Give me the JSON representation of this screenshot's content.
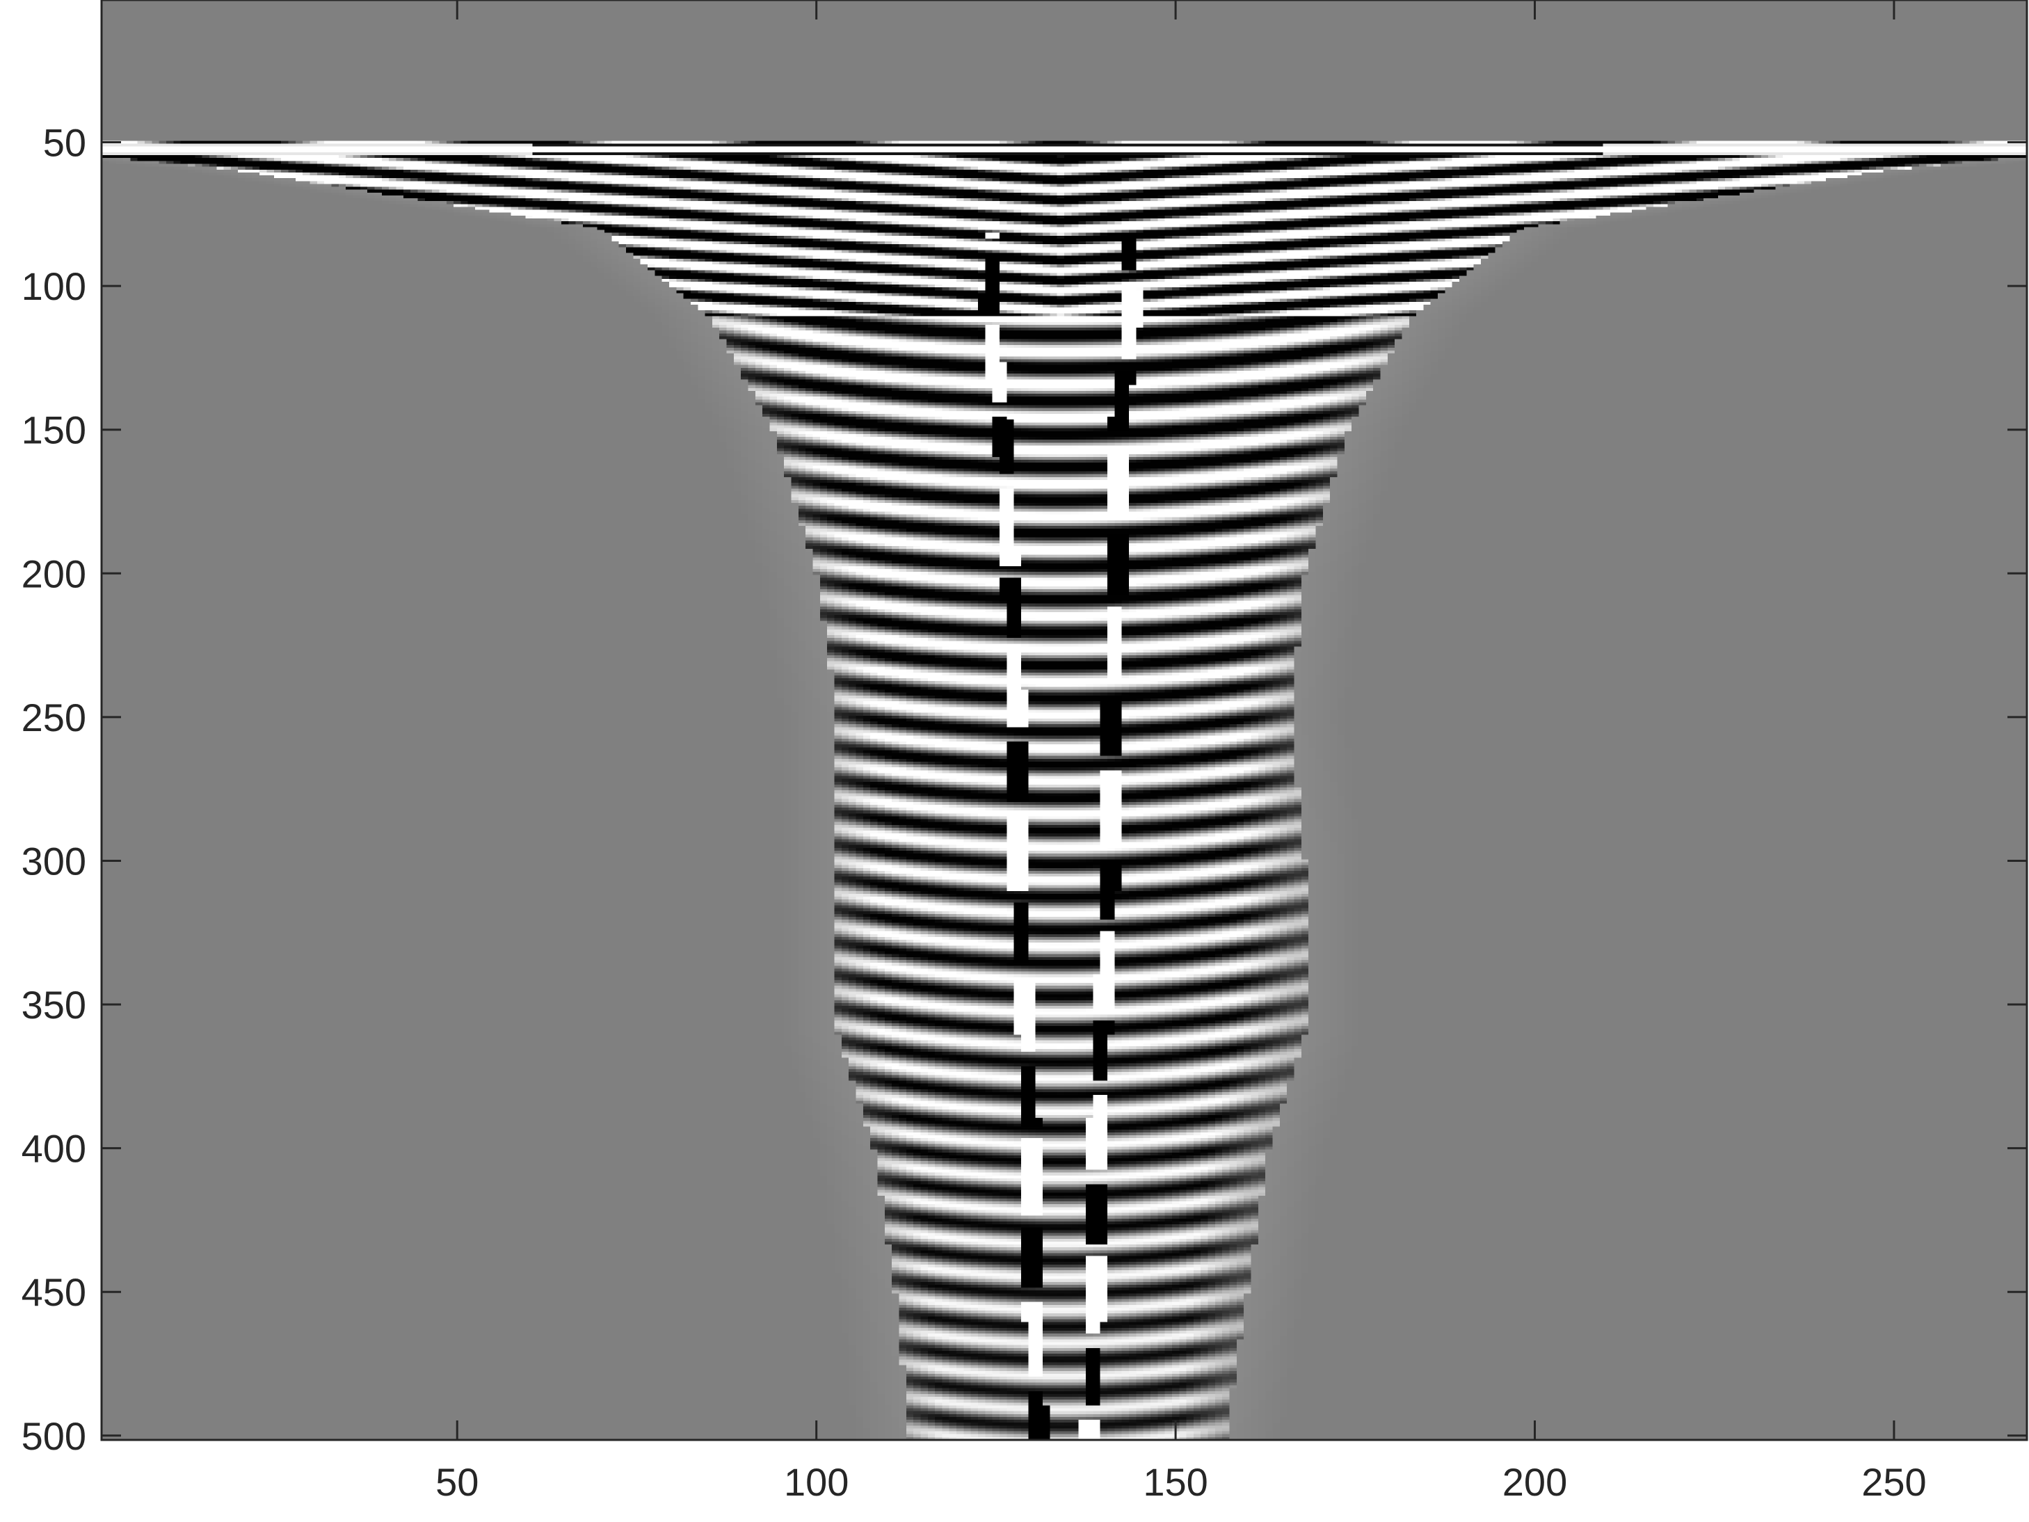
{
  "chart_data": {
    "type": "heatmap",
    "title": "",
    "xlabel": "",
    "ylabel": "",
    "colormap": "gray",
    "colors": {
      "background": "#808080",
      "low": "#000000",
      "high": "#ffffff",
      "axis": "#262626"
    },
    "xlim": [
      1,
      268
    ],
    "ylim": [
      1,
      501
    ],
    "y_reversed": true,
    "grid": false,
    "x_ticks": [
      50,
      100,
      150,
      200,
      250
    ],
    "y_ticks": [
      50,
      100,
      150,
      200,
      250,
      300,
      350,
      400,
      450,
      500
    ],
    "wavefield": {
      "source_row": 51,
      "center_col": 134,
      "fan_edges": [
        {
          "row": 55,
          "left": 1,
          "right": 268
        },
        {
          "row": 60,
          "left": 20,
          "right": 248
        },
        {
          "row": 80,
          "left": 70,
          "right": 198
        },
        {
          "row": 110,
          "left": 85,
          "right": 183
        },
        {
          "row": 150,
          "left": 94,
          "right": 174
        },
        {
          "row": 200,
          "left": 100,
          "right": 168
        },
        {
          "row": 250,
          "left": 103,
          "right": 166
        },
        {
          "row": 300,
          "left": 103,
          "right": 168
        },
        {
          "row": 360,
          "left": 103,
          "right": 168
        },
        {
          "row": 400,
          "left": 108,
          "right": 163
        },
        {
          "row": 450,
          "left": 111,
          "right": 160
        },
        {
          "row": 500,
          "left": 113,
          "right": 157
        }
      ],
      "inner_reflectors": [
        {
          "row": 70,
          "left": 125,
          "right": 143
        },
        {
          "row": 110,
          "left": 124,
          "right": 144
        },
        {
          "row": 150,
          "left": 126,
          "right": 142
        },
        {
          "row": 200,
          "left": 127,
          "right": 142
        },
        {
          "row": 250,
          "left": 128,
          "right": 141
        },
        {
          "row": 300,
          "left": 128,
          "right": 141
        },
        {
          "row": 350,
          "left": 129,
          "right": 140
        },
        {
          "row": 400,
          "left": 130,
          "right": 139
        },
        {
          "row": 450,
          "left": 130,
          "right": 139
        },
        {
          "row": 500,
          "left": 131,
          "right": 138
        }
      ]
    }
  }
}
